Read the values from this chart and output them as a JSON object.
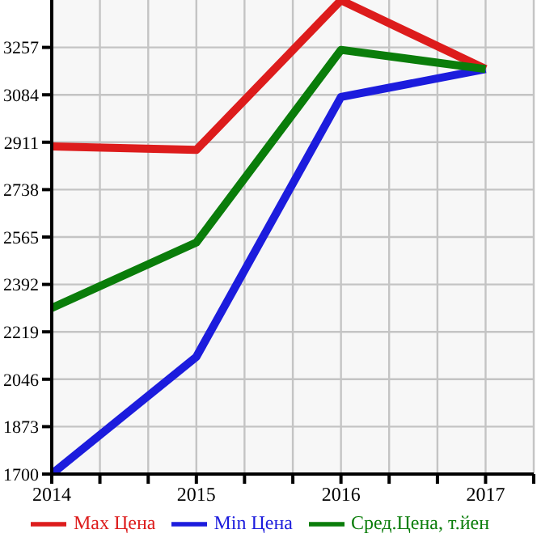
{
  "chart_data": {
    "type": "line",
    "x": [
      2014,
      2015,
      2016,
      2017
    ],
    "xlim": [
      2014,
      2017.333
    ],
    "xticks": [
      2014,
      {
        "value": 2014.333,
        "label": null
      },
      {
        "value": 2014.667,
        "label": null
      },
      2015,
      {
        "value": 2015.333,
        "label": null
      },
      {
        "value": 2015.667,
        "label": null
      },
      2016,
      {
        "value": 2016.333,
        "label": null
      },
      {
        "value": 2016.667,
        "label": null
      },
      2017,
      {
        "value": 2017.333,
        "label": null
      }
    ],
    "ylim": [
      1700,
      3430
    ],
    "yticks": [
      1700,
      1873,
      2046,
      2219,
      2392,
      2565,
      2738,
      2911,
      3084,
      3257
    ],
    "grid": true,
    "legend": "bottom",
    "marker": "none",
    "line_style": "solid",
    "series": [
      {
        "name": "Max Цена",
        "color": "#dd1c1c",
        "values": [
          2896,
          2883,
          3429,
          3178
        ]
      },
      {
        "name": "Min Цена",
        "color": "#1c1cdd",
        "values": [
          1700,
          2128,
          3076,
          3178
        ]
      },
      {
        "name": "Сред.Цена, т.йен",
        "color": "#0a7d0a",
        "values": [
          2306,
          2545,
          3248,
          3178
        ]
      }
    ]
  }
}
